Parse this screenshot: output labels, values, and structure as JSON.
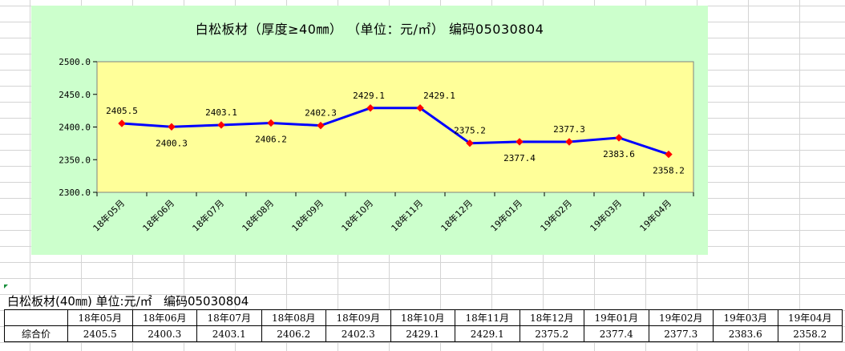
{
  "chart_data": {
    "type": "line",
    "title": "白松板材（厚度≥40㎜）  （单位：元/㎡）  编码05030804",
    "categories": [
      "18年05月",
      "18年06月",
      "18年07月",
      "18年08月",
      "18年09月",
      "18年10月",
      "18年11月",
      "18年12月",
      "19年01月",
      "19年02月",
      "19年03月",
      "19年04月"
    ],
    "series": [
      {
        "values": [
          2405.5,
          2400.3,
          2403.1,
          2406.2,
          2402.3,
          2429.1,
          2429.1,
          2375.2,
          2377.4,
          2377.3,
          2383.6,
          2358.2
        ]
      }
    ],
    "data_labels": [
      "2405.5",
      "2400.3",
      "2403.1",
      "2406.2",
      "2402.3",
      "2429.1",
      "2429.1",
      "2375.2",
      "2377.4",
      "2377.3",
      "2383.6",
      "2358.2"
    ],
    "label_position": [
      "above",
      "below",
      "above",
      "below",
      "above",
      "above",
      "above",
      "above",
      "below",
      "above",
      "below",
      "below"
    ],
    "y_ticks": [
      "2500.0",
      "2450.0",
      "2400.0",
      "2350.0",
      "2300.0"
    ],
    "ylim": [
      2300,
      2500
    ],
    "xlabel": "",
    "ylabel": "",
    "grid": false,
    "line_color": "#0000ff",
    "marker_color": "#ff0000",
    "plot_background": "#ffff99",
    "chart_background": "#ccffcc"
  },
  "table": {
    "title": "白松板材(40㎜) 单位:元/㎡   编码05030804",
    "row_label": "综合价",
    "headers": [
      "18年05月",
      "18年06月",
      "18年07月",
      "18年08月",
      "18年09月",
      "18年10月",
      "18年11月",
      "18年12月",
      "19年01月",
      "19年02月",
      "19年03月",
      "19年04月"
    ],
    "values": [
      "2405.5",
      "2400.3",
      "2403.1",
      "2406.2",
      "2402.3",
      "2429.1",
      "2429.1",
      "2375.2",
      "2377.4",
      "2377.3",
      "2383.6",
      "2358.2"
    ]
  }
}
